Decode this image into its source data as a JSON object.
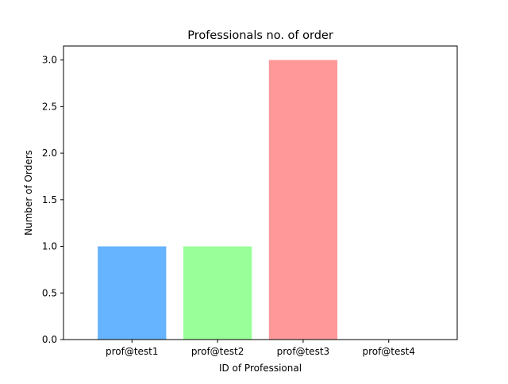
{
  "chart_data": {
    "type": "bar",
    "title": "Professionals no. of order",
    "xlabel": "ID of Professional",
    "ylabel": "Number of Orders",
    "categories": [
      "prof@test1",
      "prof@test2",
      "prof@test3",
      "prof@test4"
    ],
    "values": [
      1,
      1,
      3,
      0
    ],
    "colors": [
      "#66b3ff",
      "#99ff99",
      "#ff9999",
      "#ffcc99"
    ],
    "ylim": [
      0,
      3.15
    ],
    "yticks": [
      "0.0",
      "0.5",
      "1.0",
      "1.5",
      "2.0",
      "2.5",
      "3.0"
    ],
    "grid": false,
    "legend": "none"
  }
}
